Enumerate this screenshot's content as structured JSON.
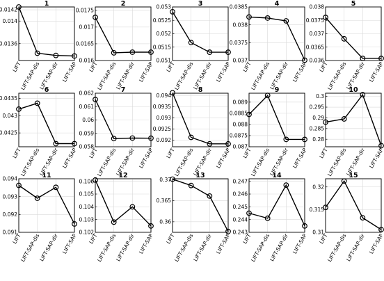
{
  "chart_data": [
    {
      "type": "line",
      "title": "1",
      "categories": [
        "LIFT",
        "LIFT-SAP-dis",
        "LIFT-SAP-dir",
        "LIFT-SAP"
      ],
      "values": [
        0.01425,
        0.01343,
        0.01339,
        0.01338
      ],
      "ylim": [
        0.0133,
        0.01425
      ],
      "yticks": [
        0.0136,
        0.014,
        0.0142
      ],
      "ytick_labels": [
        "0.0136",
        "0.014",
        "0.0142"
      ],
      "grid": true
    },
    {
      "type": "line",
      "title": "2",
      "categories": [
        "LIFT",
        "LIFT-SAP-dis",
        "LIFT-SAP-dir",
        "LIFT-SAP"
      ],
      "values": [
        0.01729,
        0.01623,
        0.01625,
        0.01625
      ],
      "ylim": [
        0.016,
        0.0176
      ],
      "yticks": [
        0.016,
        0.0165,
        0.017,
        0.0175
      ],
      "ytick_labels": [
        "0.016",
        "0.0165",
        "0.017",
        "0.0175"
      ],
      "grid": true
    },
    {
      "type": "line",
      "title": "3",
      "categories": [
        "LIFT",
        "LIFT-SAP-dis",
        "LIFT-SAP-dir",
        "LIFT-SAP"
      ],
      "values": [
        0.05282,
        0.05167,
        0.05131,
        0.05131
      ],
      "ylim": [
        0.051,
        0.053
      ],
      "yticks": [
        0.051,
        0.0515,
        0.052,
        0.0525,
        0.053
      ],
      "ytick_labels": [
        "0.051",
        "0.0515",
        "0.052",
        "0.0525",
        "0.053"
      ],
      "grid": true
    },
    {
      "type": "line",
      "title": "4",
      "categories": [
        "LIFT",
        "LIFT-SAP-dis",
        "LIFT-SAP-dir",
        "LIFT-SAP"
      ],
      "values": [
        0.03822,
        0.03819,
        0.03811,
        0.03701
      ],
      "ylim": [
        0.037,
        0.0385
      ],
      "yticks": [
        0.037,
        0.0375,
        0.038,
        0.0385
      ],
      "ytick_labels": [
        "0.037",
        "0.0375",
        "0.038",
        "0.0385"
      ],
      "grid": true
    },
    {
      "type": "line",
      "title": "5",
      "categories": [
        "LIFT",
        "LIFT-SAP-dis",
        "LIFT-SAP-dir",
        "LIFT-SAP"
      ],
      "values": [
        0.03761,
        0.03681,
        0.03608,
        0.03608
      ],
      "ylim": [
        0.036,
        0.038
      ],
      "yticks": [
        0.036,
        0.0365,
        0.037,
        0.0375,
        0.038
      ],
      "ytick_labels": [
        "0.036",
        "0.0365",
        "0.037",
        "0.0375",
        "0.038"
      ],
      "grid": true
    },
    {
      "type": "line",
      "title": "6",
      "categories": [
        "LIFT",
        "LIFT-SAP-dis",
        "LIFT-SAP-dir",
        "LIFT-SAP"
      ],
      "values": [
        0.04319,
        0.04336,
        0.04219,
        0.04219
      ],
      "ylim": [
        0.0421,
        0.04365
      ],
      "yticks": [
        0.0425,
        0.043,
        0.0435
      ],
      "ytick_labels": [
        "0.0425",
        "0.043",
        "0.0435"
      ],
      "grid": true
    },
    {
      "type": "line",
      "title": "7",
      "categories": [
        "LIFT",
        "LIFT-SAP-dis",
        "LIFT-SAP-dir",
        "LIFT-SAP"
      ],
      "values": [
        0.06153,
        0.05861,
        0.05865,
        0.05864
      ],
      "ylim": [
        0.058,
        0.062
      ],
      "yticks": [
        0.058,
        0.059,
        0.06,
        0.061,
        0.062
      ],
      "ytick_labels": [
        "0.058",
        "0.059",
        "0.06",
        "0.061",
        "0.062"
      ],
      "grid": true
    },
    {
      "type": "line",
      "title": "8",
      "categories": [
        "LIFT",
        "LIFT-SAP-dis",
        "LIFT-SAP-dir",
        "LIFT-SAP"
      ],
      "values": [
        0.09412,
        0.09212,
        0.09183,
        0.09183
      ],
      "ylim": [
        0.0917,
        0.0941
      ],
      "yticks": [
        0.092,
        0.0925,
        0.093,
        0.0935,
        0.094
      ],
      "ytick_labels": [
        "0.092",
        "0.0925",
        "0.093",
        "0.0935",
        "0.094"
      ],
      "grid": true
    },
    {
      "type": "line",
      "title": "9",
      "categories": [
        "LIFT",
        "LIFT-SAP-dis",
        "LIFT-SAP-dir",
        "LIFT-SAP"
      ],
      "values": [
        0.08845,
        0.0893,
        0.08733,
        0.08733
      ],
      "ylim": [
        0.087,
        0.0894
      ],
      "yticks": [
        0.087,
        0.0875,
        0.088,
        0.0885,
        0.089
      ],
      "ytick_labels": [
        "0.087",
        "0.0875",
        "0.088",
        "0.0885",
        "0.089"
      ],
      "grid": true
    },
    {
      "type": "line",
      "title": "10",
      "categories": [
        "LIFT",
        "LIFT-SAP-dis",
        "LIFT-SAP-dir",
        "LIFT-SAP"
      ],
      "values": [
        0.288,
        0.2895,
        0.3008,
        0.277
      ],
      "ylim": [
        0.2765,
        0.3015
      ],
      "yticks": [
        0.28,
        0.285,
        0.29,
        0.295,
        0.3
      ],
      "ytick_labels": [
        "0.28",
        "0.285",
        "0.29",
        "0.295",
        "0.3"
      ],
      "grid": true
    },
    {
      "type": "line",
      "title": "11",
      "categories": [
        "LIFT",
        "LIFT-SAP-dis",
        "LIFT-SAP-dir",
        "LIFT-SAP"
      ],
      "values": [
        0.09363,
        0.09291,
        0.09352,
        0.09147
      ],
      "ylim": [
        0.091,
        0.094
      ],
      "yticks": [
        0.091,
        0.092,
        0.093,
        0.094
      ],
      "ytick_labels": [
        "0.091",
        "0.092",
        "0.093",
        "0.094"
      ],
      "grid": true
    },
    {
      "type": "line",
      "title": "12",
      "categories": [
        "LIFT",
        "LIFT-SAP-dis",
        "LIFT-SAP-dir",
        "LIFT-SAP"
      ],
      "values": [
        0.1061,
        0.1028,
        0.104,
        0.1025
      ],
      "ylim": [
        0.102,
        0.1062
      ],
      "yticks": [
        0.102,
        0.103,
        0.104,
        0.105,
        0.106
      ],
      "ytick_labels": [
        "0.102",
        "0.103",
        "0.104",
        "0.105",
        "0.106"
      ],
      "grid": true
    },
    {
      "type": "line",
      "title": "13",
      "categories": [
        "LIFT",
        "LIFT-SAP-dis",
        "LIFT-SAP-dir",
        "LIFT-SAP"
      ],
      "values": [
        0.3701,
        0.3686,
        0.3661,
        0.3577
      ],
      "ylim": [
        0.3575,
        0.3702
      ],
      "yticks": [
        0.36,
        0.365,
        0.37
      ],
      "ytick_labels": [
        "0.36",
        "0.365",
        "0.37"
      ],
      "grid": true
    },
    {
      "type": "line",
      "title": "14",
      "categories": [
        "LIFT",
        "LIFT-SAP-dis",
        "LIFT-SAP-dir",
        "LIFT-SAP"
      ],
      "values": [
        0.2445,
        0.2441,
        0.2467,
        0.2435
      ],
      "ylim": [
        0.243,
        0.2472
      ],
      "yticks": [
        0.243,
        0.244,
        0.245,
        0.246,
        0.247
      ],
      "ytick_labels": [
        "0.243",
        "0.244",
        "0.245",
        "0.246",
        "0.247"
      ],
      "grid": true
    },
    {
      "type": "line",
      "title": "15",
      "categories": [
        "LIFT",
        "LIFT-SAP-dis",
        "LIFT-SAP-dir",
        "LIFT-SAP"
      ],
      "values": [
        0.3155,
        0.3213,
        0.3132,
        0.3106
      ],
      "ylim": [
        0.31,
        0.3218
      ],
      "yticks": [
        0.31,
        0.315,
        0.32
      ],
      "ytick_labels": [
        "0.31",
        "0.315",
        "0.32"
      ],
      "grid": true
    }
  ]
}
